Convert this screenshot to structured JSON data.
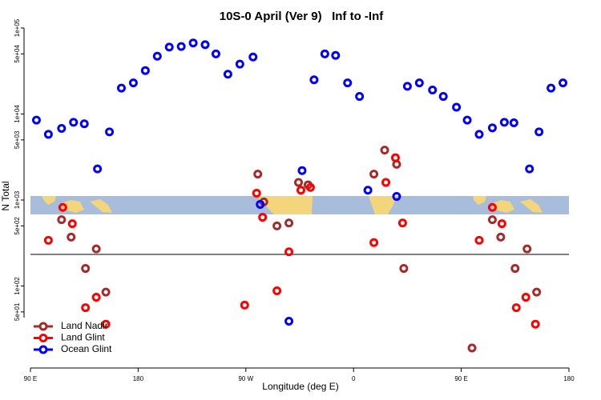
{
  "chart_data": {
    "type": "scatter",
    "title": "10S-0 April (Ver 9)   Inf to -Inf",
    "x_label": "Longitude (deg E)",
    "y_label": "N Total",
    "log_y": true,
    "legend": "bottomleft",
    "xlim": [
      90,
      540
    ],
    "xticks": [
      {
        "value": 90,
        "label": "90 E"
      },
      {
        "value": 180,
        "label": "180"
      },
      {
        "value": 270,
        "label": "90 W"
      },
      {
        "value": 360,
        "label": "0"
      },
      {
        "value": 450,
        "label": "90 E"
      },
      {
        "value": 540,
        "label": "180"
      }
    ],
    "ylim": [
      10,
      100000
    ],
    "yticks": [
      {
        "value": 100000,
        "label": "1e+05"
      },
      {
        "value": 50000,
        "label": "5e+04"
      },
      {
        "value": 10000,
        "label": "1e+04"
      },
      {
        "value": 5000,
        "label": "5e+03"
      },
      {
        "value": 1000,
        "label": "1e+03"
      },
      {
        "value": 500,
        "label": "5e+02"
      },
      {
        "value": 100,
        "label": "1e+02"
      },
      {
        "value": 50,
        "label": "5e+01"
      }
    ],
    "series": [
      {
        "name": "Land Nadir",
        "color": "#a52a2a",
        "x": [
          116,
          124,
          145,
          136,
          153,
          280,
          285,
          296,
          306,
          314,
          322,
          386,
          377,
          396,
          402,
          476,
          483,
          505,
          495,
          513,
          459
        ],
        "values": [
          590,
          370,
          270,
          160,
          85,
          2000,
          950,
          500,
          540,
          1600,
          1500,
          3800,
          2000,
          2600,
          160,
          590,
          370,
          270,
          160,
          85,
          19
        ]
      },
      {
        "name": "Land Glint",
        "color": "#ff0000",
        "x": [
          105,
          117,
          125,
          145,
          136,
          153,
          279,
          284,
          269,
          296,
          306,
          316,
          324,
          387,
          395,
          377,
          401,
          476,
          484,
          465,
          504,
          496,
          512
        ],
        "values": [
          340,
          820,
          530,
          74,
          56,
          36,
          1200,
          630,
          60,
          88,
          250,
          1300,
          1400,
          1600,
          3100,
          320,
          540,
          820,
          530,
          340,
          74,
          56,
          36
        ]
      },
      {
        "name": "Ocean Glint",
        "color": "#0000ff",
        "x": [
          95,
          105,
          116,
          126,
          135,
          146,
          156,
          166,
          176,
          186,
          196,
          206,
          216,
          226,
          236,
          245,
          255,
          265,
          276,
          282,
          317,
          327,
          336,
          345,
          355,
          365,
          372,
          396,
          405,
          415,
          426,
          435,
          446,
          455,
          465,
          476,
          486,
          494,
          507,
          515,
          525,
          535,
          306
        ],
        "values": [
          8500,
          5800,
          6800,
          8000,
          7700,
          2300,
          6200,
          20000,
          23000,
          32000,
          47000,
          60000,
          61000,
          67000,
          64000,
          50000,
          29000,
          38000,
          46000,
          890,
          2200,
          25000,
          50000,
          48000,
          23000,
          16000,
          1300,
          1100,
          21000,
          23000,
          19000,
          16000,
          12000,
          8500,
          5800,
          6900,
          8000,
          7900,
          2300,
          6200,
          20000,
          23000,
          39
        ]
      }
    ]
  }
}
